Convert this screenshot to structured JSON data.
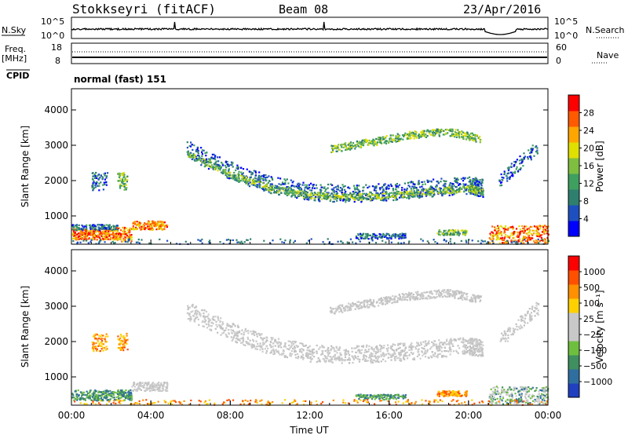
{
  "header": {
    "station": "Stokkseyri (fitACF)",
    "beam": "Beam 08",
    "date": "23/Apr/2016"
  },
  "top_panels": {
    "nsky_label": "N.Sky",
    "nsky_scale_top": "10^5",
    "nsky_scale_bottom": "10^0",
    "nsearch_label": "N.Search",
    "nsearch_scale_top": "10^5",
    "nsearch_scale_bottom": "10^0",
    "freq_label": "Freq.",
    "freq_unit": "[MHz]",
    "freq_ticks": [
      "18",
      "8"
    ],
    "nave_label": "Nave",
    "nave_ticks": [
      "60",
      "0"
    ],
    "cpid_label": "CPID",
    "cpid_value": "normal (fast) 151"
  },
  "chart_data": [
    {
      "type": "heatmap",
      "name": "power-panel",
      "ylabel": "Slant Range [km]",
      "ylim": [
        200,
        4600
      ],
      "yticks": [
        1000,
        2000,
        3000,
        4000
      ],
      "xlim": [
        0,
        24
      ],
      "colorbar_label": "Power [dB]",
      "colorbar_ticks": [
        "28",
        "24",
        "20",
        "16",
        "12",
        "8",
        "4"
      ],
      "colorbar_colors": [
        "#0000ff",
        "#1e4fc0",
        "#2f7f6f",
        "#3f9f5f",
        "#7fbf3f",
        "#dfdf00",
        "#ffa500",
        "#ff5a00",
        "#ff0000"
      ]
    },
    {
      "type": "heatmap",
      "name": "velocity-panel",
      "ylabel": "Slant Range [km]",
      "ylim": [
        200,
        4600
      ],
      "yticks": [
        1000,
        2000,
        3000,
        4000
      ],
      "xlim": [
        0,
        24
      ],
      "xlabel": "Time UT",
      "xticks": [
        "00:00",
        "04:00",
        "08:00",
        "12:00",
        "16:00",
        "20:00",
        "00:00"
      ],
      "colorbar_label": "Velocity [m s⁻¹]",
      "colorbar_ticks": [
        "1000",
        "500",
        "100",
        "25",
        "−25",
        "−100",
        "−500",
        "−1000"
      ],
      "colorbar_colors": [
        "#2040c0",
        "#2f6f9f",
        "#3f8f5f",
        "#6fbf3f",
        "#c8c8c8",
        "#c8c8c8",
        "#ffd000",
        "#ff9000",
        "#ff5000",
        "#ff0000"
      ]
    }
  ]
}
